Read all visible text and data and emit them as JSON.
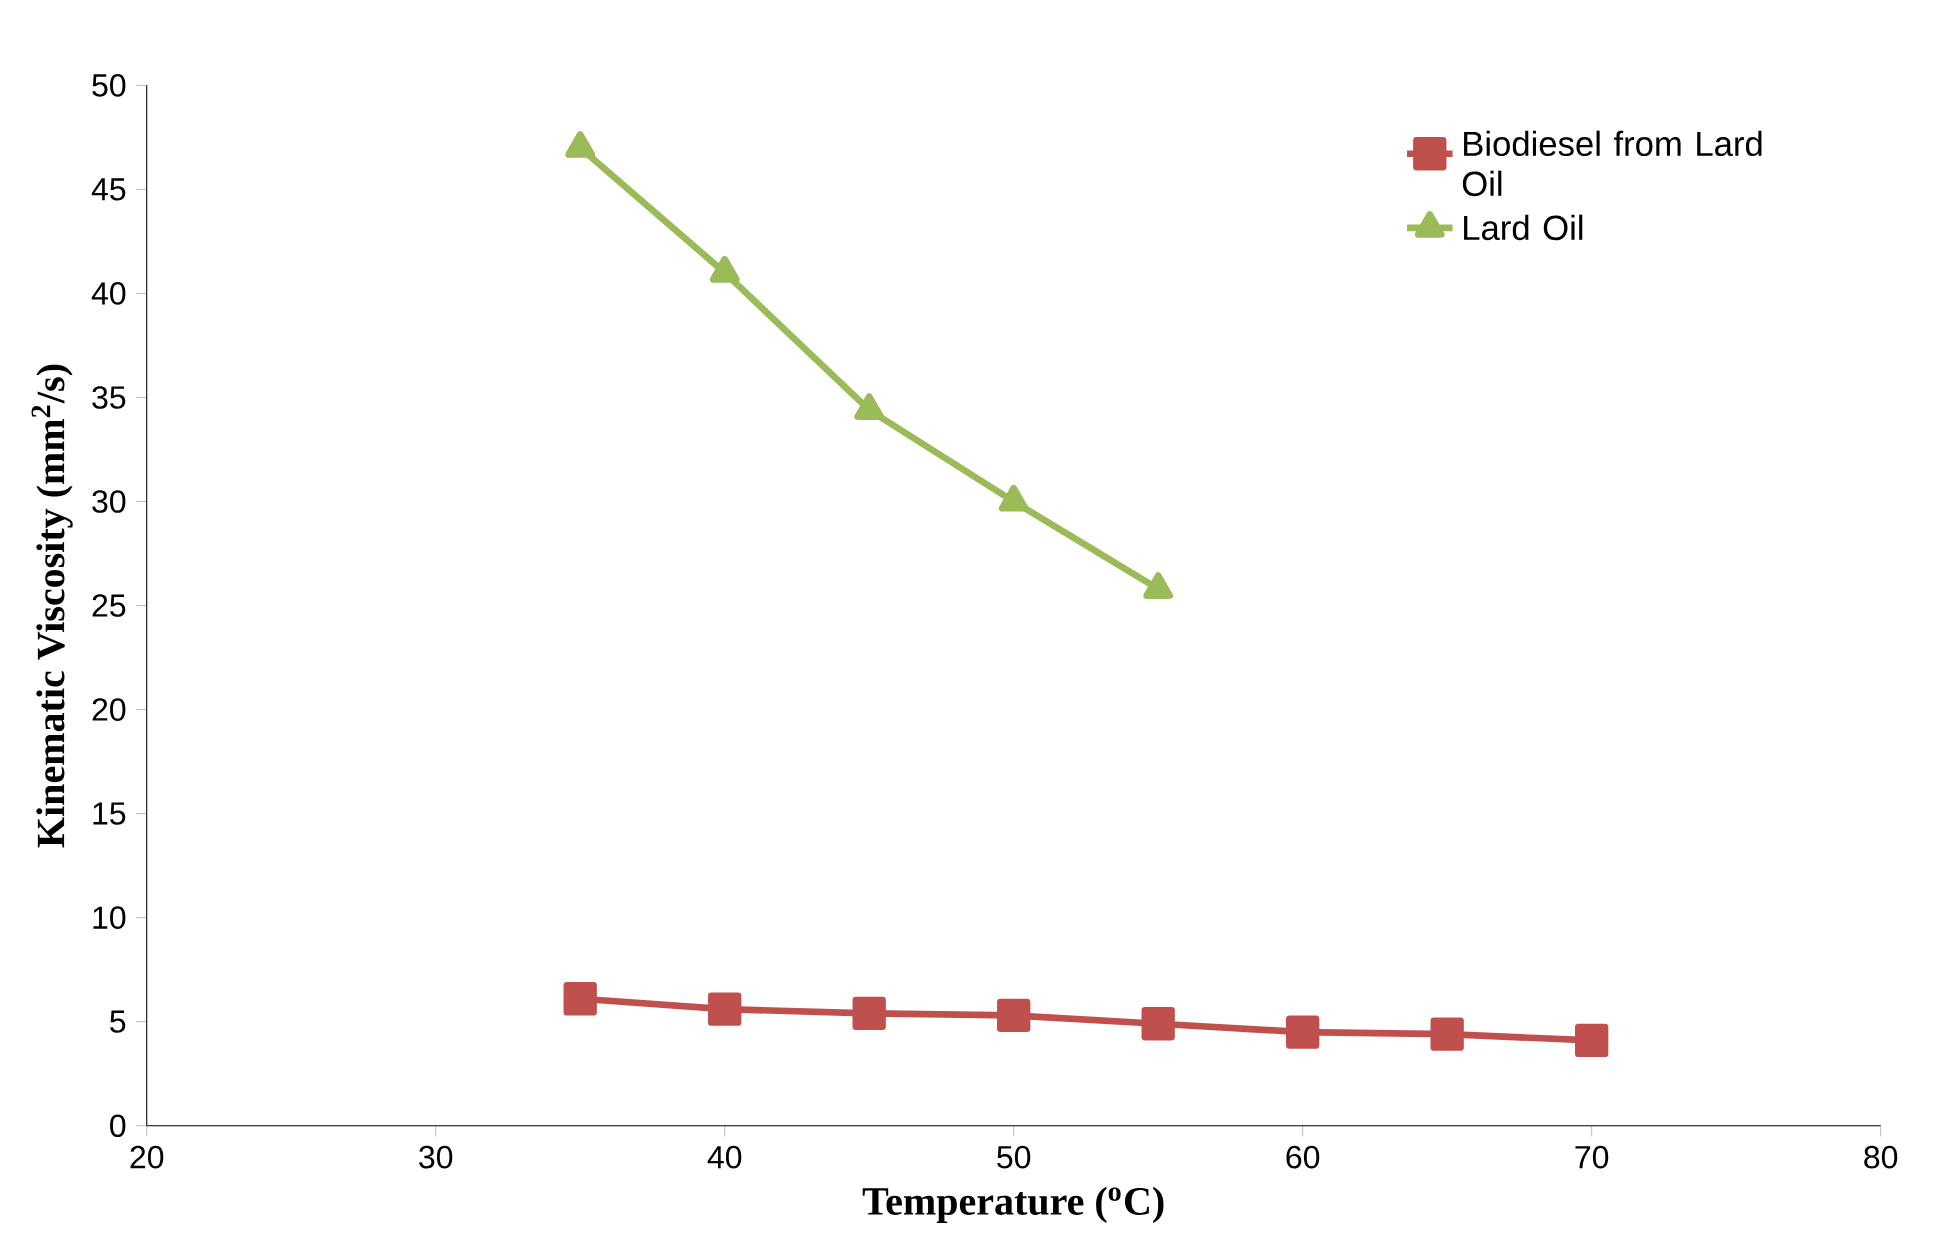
{
  "chart_data": {
    "type": "line",
    "xlabel": "Temperature ($^{o}$C)",
    "ylabel": "Kinematic Viscosity (mm$^{2}$/s)",
    "series": [
      {
        "name": "Biodiesel from Lard Oil",
        "color": "#c0504d",
        "marker": "square",
        "x": [
          35,
          40,
          45,
          50,
          55,
          60,
          65,
          70
        ],
        "values": [
          6.1,
          5.6,
          5.4,
          5.3,
          4.9,
          4.5,
          4.4,
          4.1
        ]
      },
      {
        "name": "Lard Oil",
        "color": "#9bbb59",
        "marker": "triangle",
        "x": [
          35,
          40,
          45,
          50,
          55
        ],
        "values": [
          47,
          41,
          34.4,
          30,
          25.8
        ]
      }
    ],
    "xlim": [
      20,
      80
    ],
    "xticks": [
      20,
      30,
      40,
      50,
      60,
      70,
      80
    ],
    "ylim": [
      0,
      50
    ],
    "yticks": [
      0,
      5,
      10,
      15,
      20,
      25,
      30,
      35,
      40,
      45,
      50
    ],
    "grid": false,
    "legend": "top right",
    "line_style": "solid"
  }
}
